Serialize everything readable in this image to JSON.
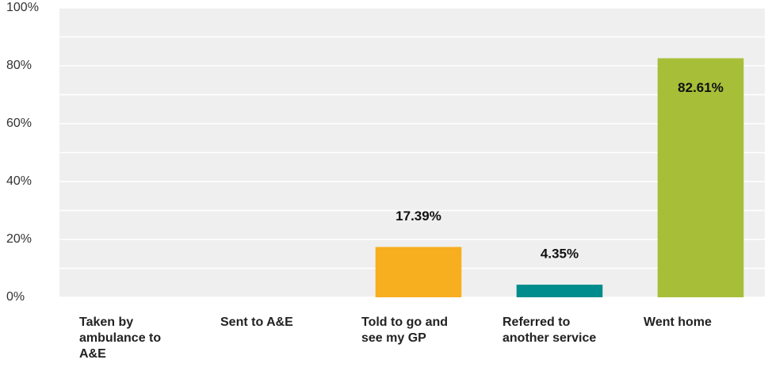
{
  "chart_data": {
    "type": "bar",
    "categories": [
      "Taken by ambulance to A&E",
      "Sent to A&E",
      "Told to go and see my GP",
      "Referred to another service",
      "Went home"
    ],
    "values": [
      0,
      0,
      17.39,
      4.35,
      82.61
    ],
    "value_labels": [
      null,
      null,
      "17.39%",
      "4.35%",
      "82.61%"
    ],
    "colors": [
      null,
      null,
      "#f7ae1f",
      "#008c8c",
      "#a7be38"
    ],
    "ylim": [
      0,
      100
    ],
    "yticks": [
      {
        "value": 0,
        "label": "0%"
      },
      {
        "value": 20,
        "label": "20%"
      },
      {
        "value": 40,
        "label": "40%"
      },
      {
        "value": 60,
        "label": "60%"
      },
      {
        "value": 80,
        "label": "80%"
      },
      {
        "value": 100,
        "label": "100%"
      }
    ],
    "minor_yticks": [
      10,
      30,
      50,
      70,
      90
    ],
    "grid": true
  }
}
